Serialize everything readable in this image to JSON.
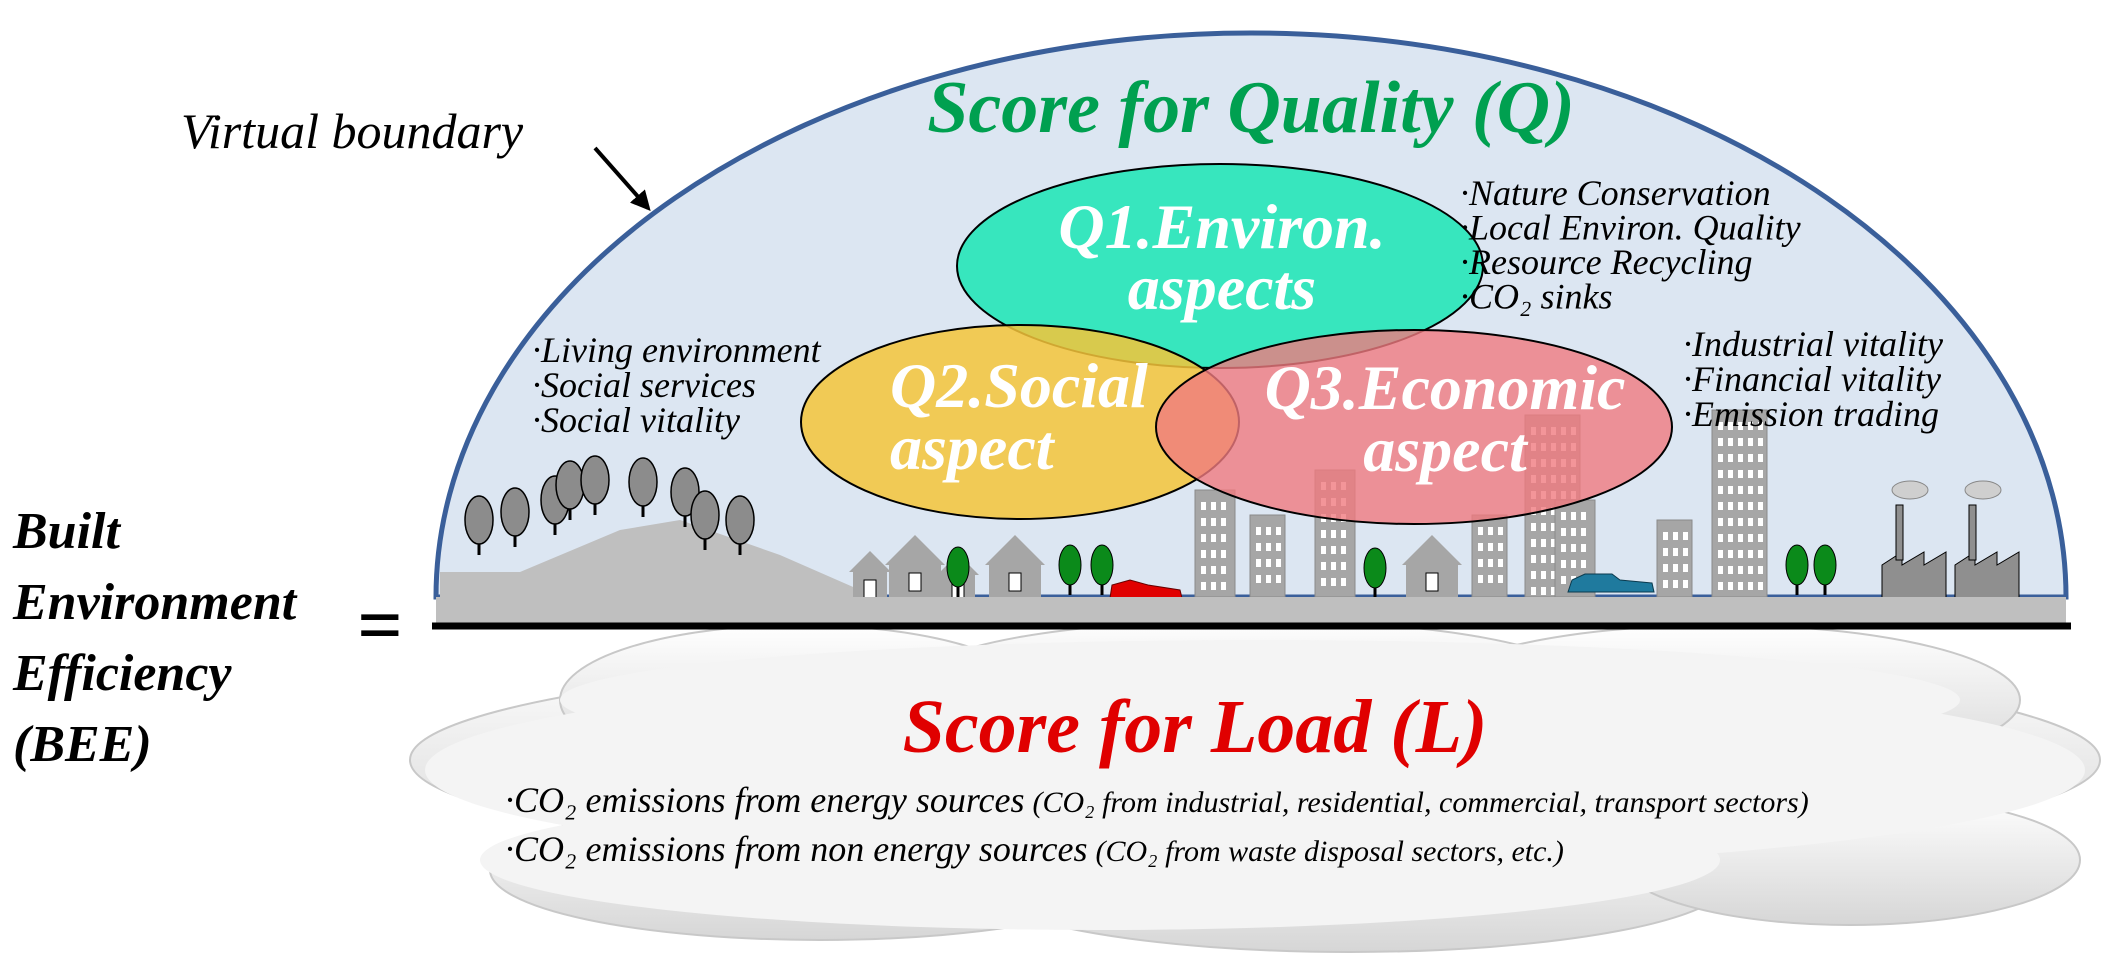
{
  "left_label": {
    "lines": [
      "Built",
      "Environment",
      "Efficiency",
      "(BEE)"
    ],
    "equals": "="
  },
  "boundary_label": "Virtual boundary",
  "quality": {
    "title": "Score for Quality (Q)",
    "q1": {
      "lines": [
        "Q1.Environ.",
        "aspects"
      ],
      "items": [
        "·Nature Conservation",
        "·Local Environ. Quality",
        "·Resource Recycling",
        "·CO₂ sinks"
      ]
    },
    "q2": {
      "lines": [
        "Q2.Social",
        "aspect"
      ],
      "items": [
        "·Living environment",
        "·Social services",
        "·Social vitality"
      ]
    },
    "q3": {
      "lines": [
        "Q3.Economic",
        "aspect"
      ],
      "items": [
        "·Industrial vitality",
        "·Financial vitality",
        "·Emission trading"
      ]
    }
  },
  "load": {
    "title": "Score for Load (L)",
    "items": [
      {
        "main": "·CO₂ emissions from energy sources",
        "note": "(CO₂ from industrial, residential, commercial, transport sectors)"
      },
      {
        "main": "·CO₂ emissions from non energy sources",
        "note": "(CO₂ from waste disposal sectors, etc.)"
      }
    ]
  }
}
